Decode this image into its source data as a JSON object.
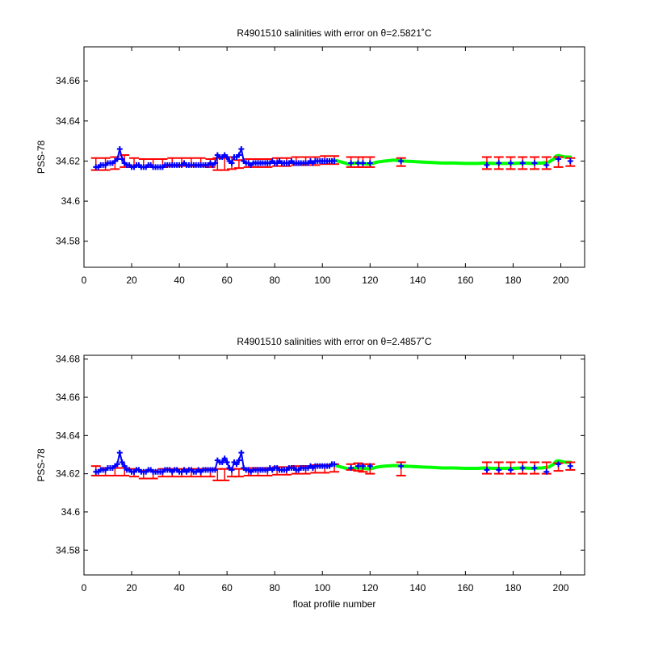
{
  "chart_data": [
    {
      "type": "scatter",
      "title": "R4901510 salinities with error on θ=2.5821˚C",
      "xlabel": "",
      "ylabel": "PSS-78",
      "xlim": [
        0,
        210
      ],
      "ylim": [
        34.567,
        34.677
      ],
      "xticks": [
        0,
        20,
        40,
        60,
        80,
        100,
        120,
        140,
        160,
        180,
        200
      ],
      "xtick_labels": [
        "0",
        "20",
        "40",
        "60",
        "80",
        "100",
        "120",
        "140",
        "160",
        "180",
        "200"
      ],
      "yticks": [
        34.58,
        34.6,
        34.62,
        34.64,
        34.66
      ],
      "ytick_labels": [
        "34.58",
        "34.6",
        "34.62",
        "34.64",
        "34.66"
      ],
      "grid": false,
      "colors": {
        "mapped": "#00ff00",
        "error_bars": "#ff0000",
        "measured": "#0000ff"
      },
      "mapped_line": {
        "x": [
          105,
          108,
          111,
          114,
          117,
          120,
          123,
          126,
          130,
          134,
          138,
          142,
          146,
          150,
          155,
          160,
          165,
          168,
          172,
          176,
          180,
          184,
          188,
          192,
          195,
          197,
          198,
          199,
          200,
          201,
          202,
          204
        ],
        "y": [
          34.6205,
          34.6195,
          34.6185,
          34.619,
          34.6188,
          34.6185,
          34.6195,
          34.62,
          34.6205,
          34.62,
          34.6198,
          34.6195,
          34.6193,
          34.619,
          34.619,
          34.6188,
          34.6188,
          34.619,
          34.6188,
          34.6188,
          34.6188,
          34.619,
          34.6188,
          34.619,
          34.6195,
          34.621,
          34.6225,
          34.6228,
          34.6225,
          34.6222,
          34.622,
          34.622
        ]
      },
      "measured": {
        "x": [
          5,
          6,
          7,
          8,
          9,
          10,
          11,
          12,
          13,
          14,
          15,
          16,
          17,
          18,
          19,
          20,
          21,
          22,
          23,
          24,
          25,
          26,
          27,
          28,
          29,
          30,
          31,
          32,
          33,
          34,
          35,
          36,
          37,
          38,
          39,
          40,
          41,
          42,
          43,
          44,
          45,
          46,
          47,
          48,
          49,
          50,
          51,
          52,
          53,
          54,
          55,
          56,
          57,
          58,
          59,
          60,
          61,
          62,
          63,
          64,
          65,
          66,
          67,
          68,
          69,
          70,
          71,
          72,
          73,
          74,
          75,
          76,
          77,
          78,
          79,
          80,
          81,
          82,
          83,
          84,
          85,
          86,
          87,
          88,
          89,
          90,
          91,
          92,
          93,
          94,
          95,
          96,
          97,
          98,
          99,
          100,
          101,
          102,
          103,
          104,
          105,
          112,
          115,
          117,
          120,
          133,
          169,
          174,
          179,
          184,
          189,
          194,
          199,
          204
        ],
        "y": [
          34.617,
          34.617,
          34.618,
          34.618,
          34.618,
          34.619,
          34.619,
          34.619,
          34.62,
          34.621,
          34.626,
          34.621,
          34.619,
          34.618,
          34.618,
          34.617,
          34.617,
          34.618,
          34.618,
          34.617,
          34.617,
          34.617,
          34.618,
          34.618,
          34.617,
          34.617,
          34.617,
          34.617,
          34.617,
          34.618,
          34.618,
          34.618,
          34.618,
          34.618,
          34.618,
          34.618,
          34.618,
          34.619,
          34.618,
          34.618,
          34.618,
          34.618,
          34.618,
          34.618,
          34.618,
          34.618,
          34.618,
          34.618,
          34.619,
          34.618,
          34.619,
          34.623,
          34.622,
          34.622,
          34.623,
          34.622,
          34.62,
          34.619,
          34.622,
          34.622,
          34.623,
          34.626,
          34.62,
          34.619,
          34.619,
          34.618,
          34.619,
          34.619,
          34.619,
          34.619,
          34.619,
          34.619,
          34.619,
          34.619,
          34.62,
          34.619,
          34.619,
          34.62,
          34.619,
          34.619,
          34.619,
          34.619,
          34.62,
          34.619,
          34.619,
          34.619,
          34.619,
          34.619,
          34.619,
          34.619,
          34.62,
          34.619,
          34.62,
          34.62,
          34.62,
          34.62,
          34.62,
          34.62,
          34.62,
          34.62,
          34.62,
          34.619,
          34.619,
          34.619,
          34.619,
          34.62,
          34.618,
          34.619,
          34.619,
          34.619,
          34.619,
          34.618,
          34.621,
          34.62
        ]
      },
      "error_bars": {
        "x": [
          5,
          9,
          13,
          17,
          21,
          25,
          29,
          33,
          37,
          41,
          45,
          49,
          53,
          56,
          59,
          62,
          65,
          69,
          73,
          77,
          81,
          85,
          89,
          93,
          97,
          101,
          105,
          112,
          115,
          117,
          120,
          133,
          169,
          174,
          179,
          184,
          189,
          194,
          199,
          204
        ],
        "y": [
          34.6185,
          34.6185,
          34.619,
          34.62,
          34.6195,
          34.619,
          34.619,
          34.619,
          34.6195,
          34.6195,
          34.6195,
          34.6195,
          34.619,
          34.6185,
          34.6185,
          34.619,
          34.6185,
          34.619,
          34.619,
          34.619,
          34.6195,
          34.6195,
          34.62,
          34.62,
          34.62,
          34.6205,
          34.6205,
          34.6195,
          34.6195,
          34.6195,
          34.6195,
          34.6195,
          34.619,
          34.619,
          34.619,
          34.619,
          34.619,
          34.619,
          34.6195,
          34.6195
        ],
        "err": [
          0.003,
          0.003,
          0.003,
          0.003,
          0.002,
          0.002,
          0.002,
          0.002,
          0.002,
          0.002,
          0.002,
          0.002,
          0.002,
          0.003,
          0.003,
          0.003,
          0.002,
          0.002,
          0.002,
          0.002,
          0.002,
          0.002,
          0.002,
          0.002,
          0.002,
          0.002,
          0.002,
          0.0025,
          0.0025,
          0.0025,
          0.0025,
          0.002,
          0.003,
          0.003,
          0.003,
          0.003,
          0.003,
          0.003,
          0.0025,
          0.002
        ]
      }
    },
    {
      "type": "scatter",
      "title": "R4901510 salinities with error on θ=2.4857˚C",
      "xlabel": "float profile number",
      "ylabel": "PSS-78",
      "xlim": [
        0,
        210
      ],
      "ylim": [
        34.567,
        34.682
      ],
      "xticks": [
        0,
        20,
        40,
        60,
        80,
        100,
        120,
        140,
        160,
        180,
        200
      ],
      "xtick_labels": [
        "0",
        "20",
        "40",
        "60",
        "80",
        "100",
        "120",
        "140",
        "160",
        "180",
        "200"
      ],
      "yticks": [
        34.58,
        34.6,
        34.62,
        34.64,
        34.66,
        34.68
      ],
      "ytick_labels": [
        "34.58",
        "34.6",
        "34.62",
        "34.64",
        "34.66",
        "34.68"
      ],
      "grid": false,
      "colors": {
        "mapped": "#00ff00",
        "error_bars": "#ff0000",
        "measured": "#0000ff"
      },
      "mapped_line": {
        "x": [
          105,
          108,
          111,
          114,
          117,
          120,
          123,
          126,
          130,
          134,
          138,
          142,
          146,
          150,
          155,
          160,
          165,
          168,
          172,
          176,
          180,
          184,
          188,
          192,
          195,
          197,
          198,
          199,
          200,
          201,
          202,
          204
        ],
        "y": [
          34.6245,
          34.6235,
          34.6225,
          34.623,
          34.6228,
          34.6225,
          34.6235,
          34.624,
          34.6243,
          34.624,
          34.6238,
          34.6235,
          34.6233,
          34.623,
          34.623,
          34.6228,
          34.6228,
          34.623,
          34.6228,
          34.6228,
          34.6228,
          34.623,
          34.6228,
          34.623,
          34.6235,
          34.625,
          34.6265,
          34.6268,
          34.6265,
          34.6262,
          34.626,
          34.626
        ]
      },
      "measured": {
        "x": [
          5,
          6,
          7,
          8,
          9,
          10,
          11,
          12,
          13,
          14,
          15,
          16,
          17,
          18,
          19,
          20,
          21,
          22,
          23,
          24,
          25,
          26,
          27,
          28,
          29,
          30,
          31,
          32,
          33,
          34,
          35,
          36,
          37,
          38,
          39,
          40,
          41,
          42,
          43,
          44,
          45,
          46,
          47,
          48,
          49,
          50,
          51,
          52,
          53,
          54,
          55,
          56,
          57,
          58,
          59,
          60,
          61,
          62,
          63,
          64,
          65,
          66,
          67,
          68,
          69,
          70,
          71,
          72,
          73,
          74,
          75,
          76,
          77,
          78,
          79,
          80,
          81,
          82,
          83,
          84,
          85,
          86,
          87,
          88,
          89,
          90,
          91,
          92,
          93,
          94,
          95,
          96,
          97,
          98,
          99,
          100,
          101,
          102,
          103,
          104,
          105,
          112,
          115,
          117,
          120,
          133,
          169,
          174,
          179,
          184,
          189,
          194,
          199,
          204
        ],
        "y": [
          34.621,
          34.621,
          34.622,
          34.622,
          34.622,
          34.623,
          34.623,
          34.623,
          34.624,
          34.625,
          34.631,
          34.626,
          34.624,
          34.622,
          34.622,
          34.621,
          34.621,
          34.622,
          34.622,
          34.621,
          34.621,
          34.621,
          34.622,
          34.622,
          34.621,
          34.621,
          34.621,
          34.621,
          34.621,
          34.622,
          34.622,
          34.622,
          34.621,
          34.622,
          34.622,
          34.621,
          34.621,
          34.622,
          34.621,
          34.622,
          34.622,
          34.621,
          34.621,
          34.622,
          34.621,
          34.622,
          34.622,
          34.622,
          34.622,
          34.622,
          34.622,
          34.627,
          34.626,
          34.626,
          34.628,
          34.626,
          34.623,
          34.622,
          34.626,
          34.625,
          34.627,
          34.631,
          34.623,
          34.622,
          34.622,
          34.621,
          34.622,
          34.622,
          34.622,
          34.622,
          34.622,
          34.622,
          34.622,
          34.623,
          34.622,
          34.623,
          34.623,
          34.622,
          34.622,
          34.622,
          34.622,
          34.623,
          34.623,
          34.623,
          34.622,
          34.622,
          34.623,
          34.623,
          34.623,
          34.623,
          34.624,
          34.623,
          34.624,
          34.624,
          34.624,
          34.624,
          34.624,
          34.624,
          34.624,
          34.625,
          34.625,
          34.623,
          34.624,
          34.624,
          34.624,
          34.624,
          34.622,
          34.622,
          34.622,
          34.623,
          34.623,
          34.621,
          34.625,
          34.624
        ]
      },
      "error_bars": {
        "x": [
          5,
          9,
          13,
          17,
          21,
          25,
          29,
          33,
          37,
          41,
          45,
          49,
          53,
          56,
          59,
          62,
          65,
          69,
          73,
          77,
          81,
          85,
          89,
          93,
          97,
          101,
          105,
          112,
          115,
          117,
          120,
          133,
          169,
          174,
          179,
          184,
          189,
          194,
          199,
          204
        ],
        "y": [
          34.6215,
          34.621,
          34.621,
          34.621,
          34.6205,
          34.6195,
          34.6195,
          34.6205,
          34.6205,
          34.6205,
          34.6205,
          34.6205,
          34.6205,
          34.6195,
          34.6195,
          34.6205,
          34.6205,
          34.621,
          34.621,
          34.621,
          34.6215,
          34.6215,
          34.622,
          34.622,
          34.6225,
          34.6225,
          34.623,
          34.6235,
          34.6235,
          34.623,
          34.6225,
          34.6225,
          34.623,
          34.623,
          34.623,
          34.623,
          34.623,
          34.623,
          34.6235,
          34.624
        ],
        "err": [
          0.0025,
          0.002,
          0.002,
          0.002,
          0.002,
          0.002,
          0.002,
          0.002,
          0.002,
          0.002,
          0.002,
          0.002,
          0.002,
          0.003,
          0.003,
          0.002,
          0.002,
          0.002,
          0.002,
          0.002,
          0.002,
          0.002,
          0.002,
          0.002,
          0.002,
          0.002,
          0.002,
          0.0015,
          0.002,
          0.002,
          0.0025,
          0.0035,
          0.003,
          0.003,
          0.003,
          0.003,
          0.003,
          0.003,
          0.002,
          0.002
        ]
      }
    }
  ]
}
